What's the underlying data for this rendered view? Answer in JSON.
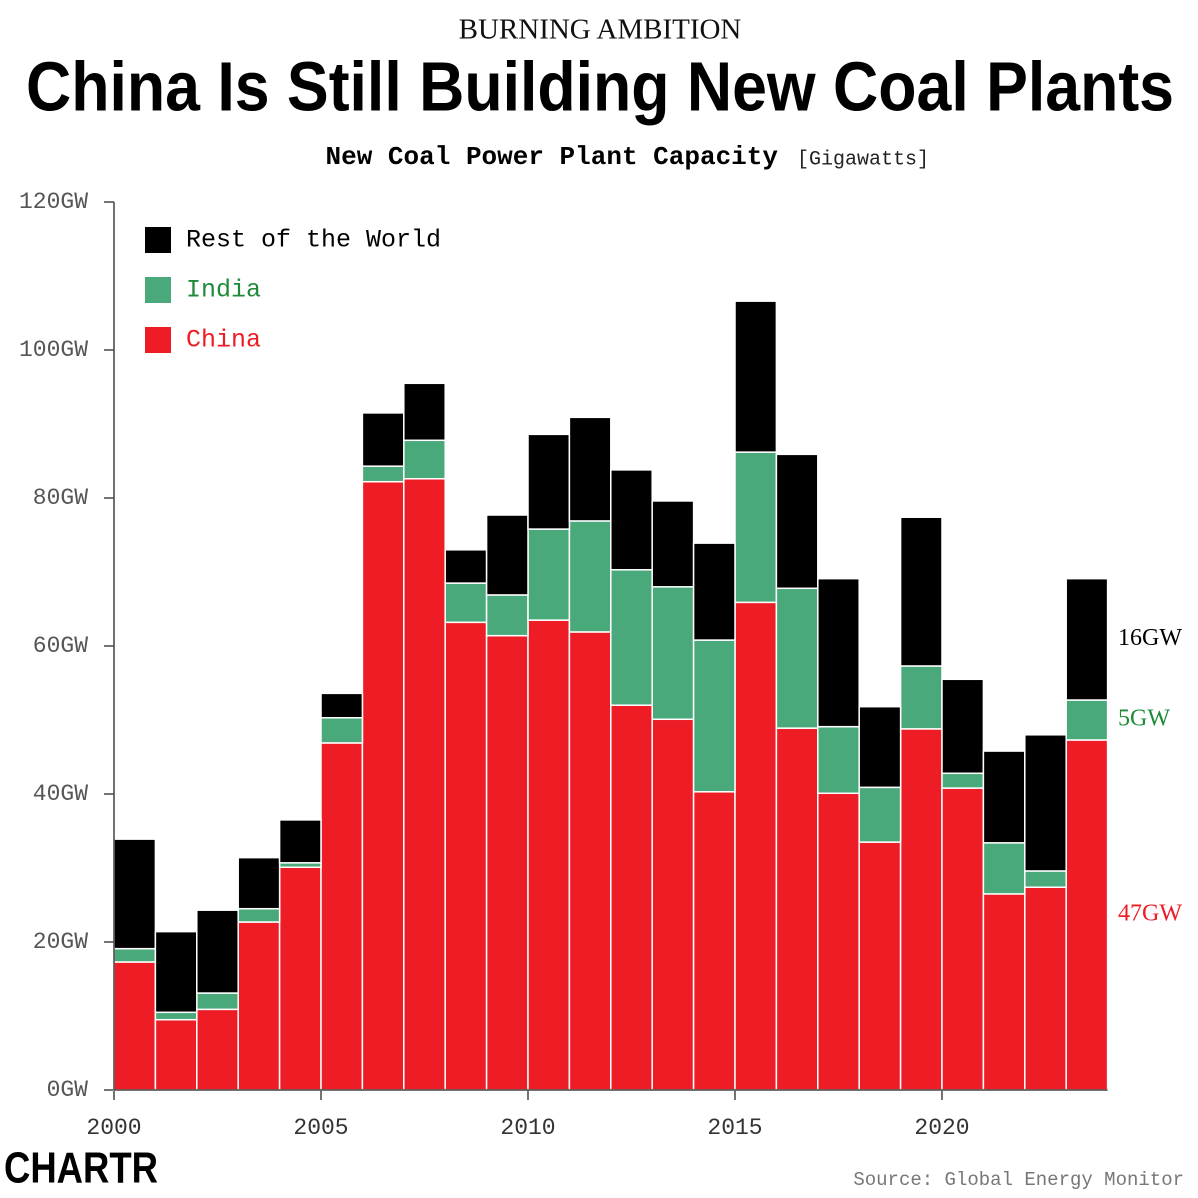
{
  "chart_data": {
    "type": "stacked-bar",
    "kicker": "BURNING AMBITION",
    "title": "China Is Still Building New Coal Plants",
    "subtitle": "New Coal Power Plant Capacity",
    "unit_note": "[Gigawatts]",
    "source": "Source: Global Energy Monitor",
    "logo": "CHARTR",
    "x": [
      2000,
      2001,
      2002,
      2003,
      2004,
      2005,
      2006,
      2007,
      2008,
      2009,
      2010,
      2011,
      2012,
      2013,
      2014,
      2015,
      2016,
      2017,
      2018,
      2019,
      2020,
      2021,
      2022,
      2023
    ],
    "xlim": [
      2000,
      2024
    ],
    "xticks": [
      2000,
      2005,
      2010,
      2015,
      2020
    ],
    "ylim": [
      0,
      120
    ],
    "yticks": [
      {
        "value": 0,
        "label": "0GW"
      },
      {
        "value": 20,
        "label": "20GW"
      },
      {
        "value": 40,
        "label": "40GW"
      },
      {
        "value": 60,
        "label": "60GW"
      },
      {
        "value": 80,
        "label": "80GW"
      },
      {
        "value": 100,
        "label": "100GW"
      },
      {
        "value": 120,
        "label": "120GW"
      }
    ],
    "grid": false,
    "legend": "upper-left",
    "series": [
      {
        "name": "China",
        "color": "#ee1c25",
        "values": [
          17.3,
          9.5,
          10.9,
          22.7,
          30.1,
          46.9,
          82.2,
          82.6,
          63.2,
          61.4,
          63.5,
          61.9,
          52.0,
          50.1,
          40.3,
          65.9,
          48.9,
          40.1,
          33.5,
          48.8,
          40.8,
          26.5,
          27.4,
          47.3
        ],
        "value_labels": [
          null,
          null,
          null,
          null,
          null,
          null,
          null,
          null,
          null,
          null,
          null,
          null,
          null,
          null,
          null,
          null,
          null,
          null,
          null,
          null,
          null,
          null,
          null,
          "47GW"
        ]
      },
      {
        "name": "India",
        "color": "#4aa97a",
        "values": [
          1.8,
          1.0,
          2.2,
          1.8,
          0.6,
          3.4,
          2.1,
          5.2,
          5.3,
          5.5,
          12.3,
          15.0,
          18.3,
          17.9,
          20.5,
          20.3,
          18.9,
          9.0,
          7.4,
          8.5,
          2.0,
          6.9,
          2.2,
          5.4
        ],
        "value_labels": [
          null,
          null,
          null,
          null,
          null,
          null,
          null,
          null,
          null,
          null,
          null,
          null,
          null,
          null,
          null,
          null,
          null,
          null,
          null,
          null,
          null,
          null,
          null,
          "5GW"
        ]
      },
      {
        "name": "Rest of the World",
        "color": "#000000",
        "values": [
          14.8,
          10.9,
          11.2,
          6.9,
          5.8,
          3.3,
          7.2,
          7.7,
          4.5,
          10.8,
          12.8,
          14.0,
          13.5,
          11.6,
          13.1,
          20.4,
          18.1,
          20.0,
          10.9,
          20.1,
          12.7,
          12.4,
          18.4,
          16.4
        ],
        "value_labels": [
          null,
          null,
          null,
          null,
          null,
          null,
          null,
          null,
          null,
          null,
          null,
          null,
          null,
          null,
          null,
          null,
          null,
          null,
          null,
          null,
          null,
          null,
          null,
          "16GW"
        ]
      }
    ]
  }
}
